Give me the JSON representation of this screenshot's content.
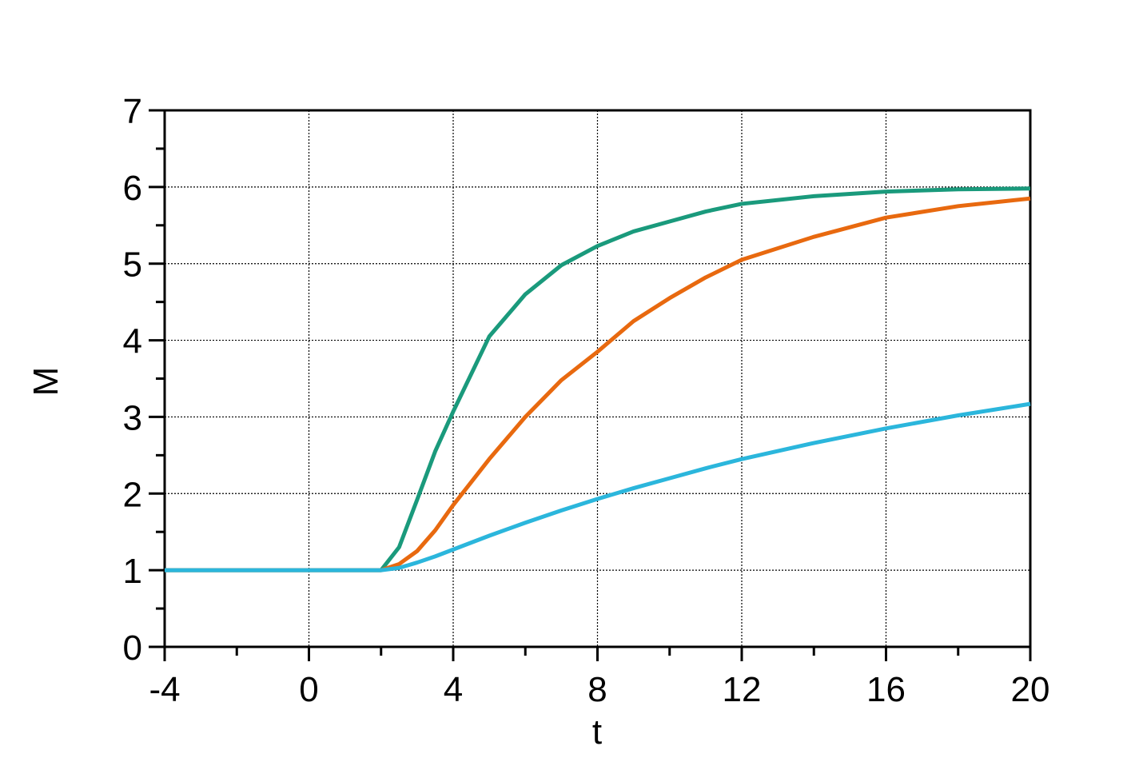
{
  "chart_data": {
    "type": "line",
    "x_label": "t",
    "y_label": "M",
    "x": [
      -4,
      2,
      2.5,
      3,
      3.5,
      4,
      5,
      6,
      7,
      8,
      9,
      10,
      11,
      12,
      14,
      16,
      18,
      20
    ],
    "series": [
      {
        "color": "#1a9a7c",
        "values": [
          1,
          1,
          1.3,
          1.92,
          2.55,
          3.07,
          4.05,
          4.6,
          4.98,
          5.23,
          5.42,
          5.55,
          5.68,
          5.78,
          5.88,
          5.94,
          5.97,
          5.98
        ]
      },
      {
        "color": "#e8690f",
        "values": [
          1,
          1,
          1.08,
          1.25,
          1.52,
          1.85,
          2.45,
          3.0,
          3.48,
          3.85,
          4.25,
          4.55,
          4.82,
          5.05,
          5.35,
          5.6,
          5.75,
          5.85
        ]
      },
      {
        "color": "#2bb6dc",
        "values": [
          1,
          1,
          1.03,
          1.1,
          1.18,
          1.27,
          1.45,
          1.62,
          1.78,
          1.93,
          2.07,
          2.2,
          2.33,
          2.45,
          2.66,
          2.85,
          3.02,
          3.17
        ]
      }
    ],
    "xlim": [
      -4,
      20
    ],
    "xticks": [
      -4,
      0,
      4,
      8,
      12,
      16,
      20
    ],
    "x_minor_ticks": [
      -2,
      2,
      6,
      10,
      14,
      18
    ],
    "ylim": [
      0,
      7
    ],
    "yticks": [
      0,
      1,
      2,
      3,
      4,
      5,
      6,
      7
    ],
    "y_minor_ticks": [
      0.5,
      1.5,
      2.5,
      3.5,
      4.5,
      5.5,
      6.5
    ],
    "grid": true
  }
}
